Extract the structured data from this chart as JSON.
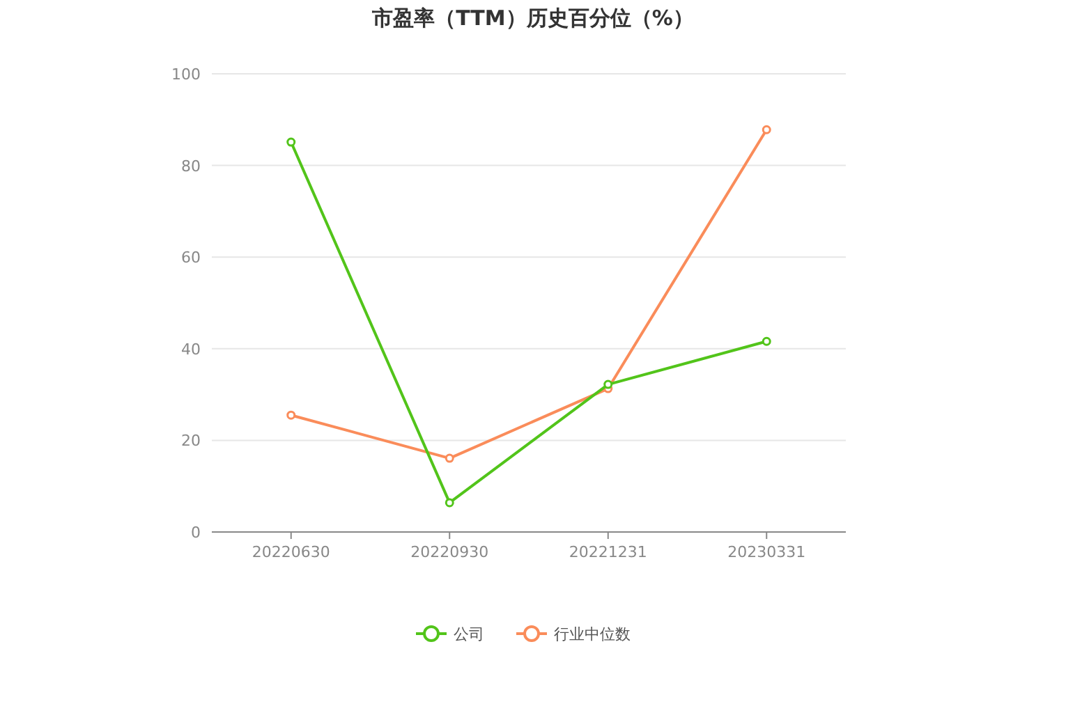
{
  "chart_data": {
    "type": "line",
    "title": "市盈率（TTM）历史百分位（%）",
    "categories": [
      "20220630",
      "20220930",
      "20221231",
      "20230331"
    ],
    "series": [
      {
        "name": "公司",
        "color": "#52c41a",
        "values": [
          85.1,
          6.4,
          32.2,
          41.6
        ]
      },
      {
        "name": "行业中位数",
        "color": "#fa8c5a",
        "values": [
          25.5,
          16.1,
          31.3,
          87.8
        ]
      }
    ],
    "ylim": [
      0,
      100
    ],
    "yticks": [
      0,
      20,
      40,
      60,
      80,
      100
    ],
    "grid": "y",
    "legend": "bottom",
    "marker": "circle",
    "line_style": "solid"
  }
}
